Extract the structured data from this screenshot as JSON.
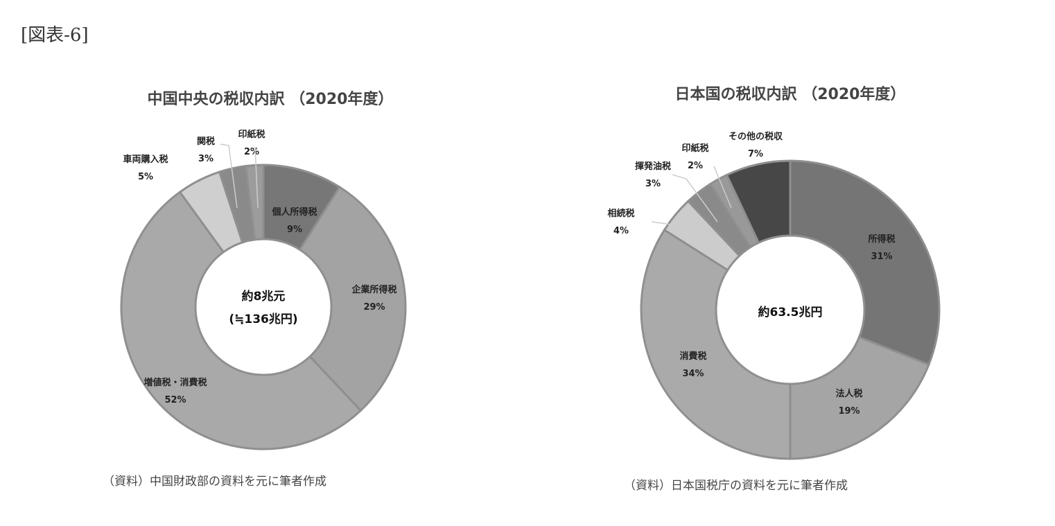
{
  "figure_label": "[図表-6]",
  "chart_data": [
    {
      "type": "pie",
      "donut": true,
      "title": "中国中央の税収内訳 （2020年度）",
      "center_label": [
        "約8兆元",
        "(≒136兆円)"
      ],
      "source": "（資料）中国財政部の資料を元に筆者作成",
      "slices": [
        {
          "label": "個人所得税",
          "value": 9,
          "color": "#777777"
        },
        {
          "label": "企業所得税",
          "value": 29,
          "color": "#a3a3a3"
        },
        {
          "label": "増値税・消費税",
          "value": 52,
          "color": "#a9a9a9"
        },
        {
          "label": "車両購入税",
          "value": 5,
          "color": "#cfcfcf"
        },
        {
          "label": "関税",
          "value": 3,
          "color": "#8a8a8a"
        },
        {
          "label": "印紙税",
          "value": 2,
          "color": "#9c9c9c"
        }
      ]
    },
    {
      "type": "pie",
      "donut": true,
      "title": "日本国の税収内訳 （2020年度）",
      "center_label": [
        "約63.5兆円"
      ],
      "source": "（資料）日本国税庁の資料を元に筆者作成",
      "slices": [
        {
          "label": "所得税",
          "value": 31,
          "color": "#757575"
        },
        {
          "label": "法人税",
          "value": 19,
          "color": "#a5a5a5"
        },
        {
          "label": "消費税",
          "value": 34,
          "color": "#aaaaaa"
        },
        {
          "label": "相続税",
          "value": 4,
          "color": "#cccccc"
        },
        {
          "label": "揮発油税",
          "value": 3,
          "color": "#8a8a8a"
        },
        {
          "label": "印紙税",
          "value": 2,
          "color": "#999999"
        },
        {
          "label": "その他の税収",
          "value": 7,
          "color": "#474747"
        }
      ]
    }
  ]
}
